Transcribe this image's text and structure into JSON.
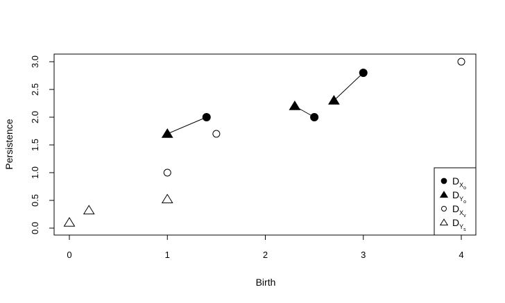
{
  "chart_data": {
    "type": "scatter",
    "title": "",
    "xlabel": "Birth",
    "ylabel": "Persistence",
    "xlim": [
      0,
      4
    ],
    "ylim": [
      0,
      3
    ],
    "xticks": [
      "0",
      "1",
      "2",
      "3",
      "4"
    ],
    "yticks": [
      "0.0",
      "0.5",
      "1.0",
      "1.5",
      "2.0",
      "2.5",
      "3.0"
    ],
    "grid": false,
    "legend_position": "bottom-right",
    "series": [
      {
        "name": "D_{X_o}",
        "legend": {
          "main": "D",
          "sub": "X",
          "subsub": "o"
        },
        "marker": "filled-circle",
        "points": [
          [
            1.4,
            2.0
          ],
          [
            2.5,
            2.0
          ],
          [
            3.0,
            2.8
          ]
        ]
      },
      {
        "name": "D_{Y_o}",
        "legend": {
          "main": "D",
          "sub": "Y",
          "subsub": "o"
        },
        "marker": "filled-triangle",
        "points": [
          [
            1.0,
            1.7
          ],
          [
            2.3,
            2.2
          ],
          [
            2.7,
            2.3
          ]
        ]
      },
      {
        "name": "D_{X_v}",
        "legend": {
          "main": "D",
          "sub": "X",
          "subsub": "v"
        },
        "marker": "open-circle",
        "points": [
          [
            1.5,
            1.7
          ],
          [
            1.0,
            1.0
          ],
          [
            4.0,
            3.0
          ]
        ]
      },
      {
        "name": "D_{Y_s}",
        "legend": {
          "main": "D",
          "sub": "Y",
          "subsub": "s"
        },
        "marker": "open-triangle",
        "points": [
          [
            0.0,
            0.1
          ],
          [
            0.2,
            0.32
          ],
          [
            1.0,
            0.52
          ]
        ]
      }
    ],
    "matching_lines": [
      {
        "from": [
          1.0,
          1.7
        ],
        "to": [
          1.4,
          2.0
        ]
      },
      {
        "from": [
          2.3,
          2.2
        ],
        "to": [
          2.5,
          2.0
        ]
      },
      {
        "from": [
          2.7,
          2.3
        ],
        "to": [
          3.0,
          2.8
        ]
      }
    ]
  }
}
